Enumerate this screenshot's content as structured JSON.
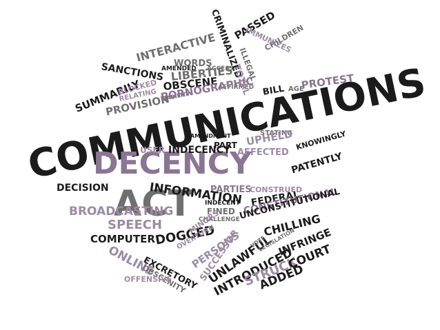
{
  "words": {
    "communications": "COMMUNICATIONS",
    "decency": "DECENCY",
    "act": "ACT",
    "decision": "DECISION",
    "information": "INFORMATION",
    "broadcasting": "BROADCASTING",
    "speech": "SPEECH",
    "computer": "COMPUTER",
    "dogged": "DOGGED",
    "online": "ONLINE",
    "excretory": "EXCRETORY",
    "obscenity": "OBSCENITY",
    "offensive": "OFFENSIVE",
    "summarily": "SUMMARILY",
    "provision": "PROVISION",
    "relating": "RELATING",
    "liability": "LIABILITY",
    "sanctions": "SANCTIONS",
    "interactive": "INTERACTIVE",
    "words": "WORDS",
    "amended": "AMENDED",
    "access": "ACCESS",
    "liberties": "LIBERTIES",
    "obscene": "OBSCENE",
    "affirmed": "AFFIRMED",
    "blocked": "BLOCKED",
    "pornographic": "PORNOGRAPHIC",
    "bill": "BILL",
    "passed": "PASSED",
    "children": "CHILDREN",
    "immunizes": "IMMUNIZES",
    "illegal": "ILLEGAL",
    "criminalized": "CRIMINALIZED",
    "total": "TOTAL",
    "age": "AGE",
    "protest": "PROTEST",
    "upheld": "UPHELD",
    "stating": "STATING",
    "amendment": "AMENDMENT",
    "part": "PART",
    "user": "USER",
    "indecency": "INDECENCY",
    "affected": "AFFECTED",
    "knowingly": "KNOWINGLY",
    "patently": "PATENTLY",
    "parties": "PARTIES",
    "construed": "CONSTRUED",
    "indecent": "INDECENT",
    "fined": "FINED",
    "federal": "FEDERAL",
    "constitutional": "CONSTITUTIONAL",
    "challenge": "CHALLENGE",
    "unconstitutional": "UNCONSTITUTIONAL",
    "minors": "MINORS",
    "overturn": "OVERTURN",
    "chilling": "CHILLING",
    "persons": "PERSONS",
    "successor": "SUCCESSOR",
    "unlawful": "UNLAWFUL",
    "vote": "VOTE",
    "legislation": "LEGISLATION",
    "infringe": "INFRINGE",
    "introduced": "INTRODUCED",
    "struck": "STRUCK",
    "court": "COURT",
    "added": "ADDED"
  },
  "colors": {
    "dark": "#1b1b1b",
    "gray": "#6f6f6f",
    "purple": "#8a7592",
    "light_purple": "#9d8aa4",
    "background": "#ffffff"
  }
}
